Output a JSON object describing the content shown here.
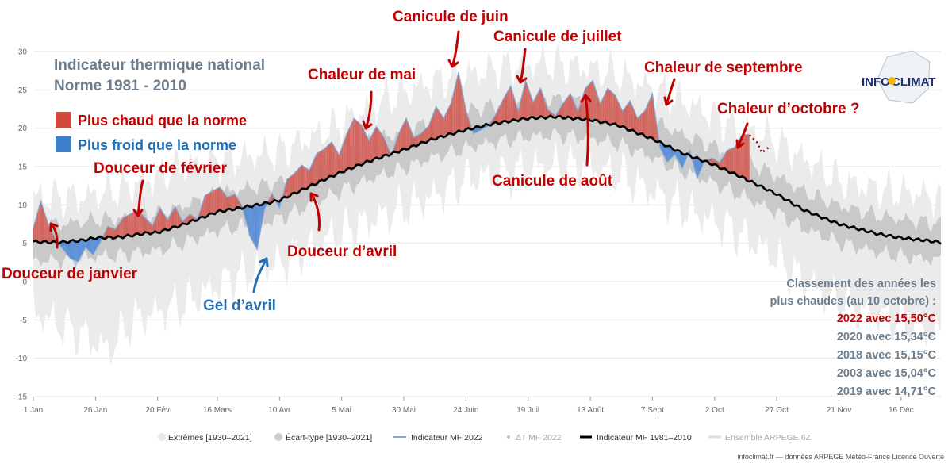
{
  "chart_data": {
    "type": "area",
    "title": "Indicateur thermique national",
    "subtitle": "Norme 1981 - 2010",
    "ylim": [
      -15,
      30
    ],
    "yticks": [
      -15,
      -10,
      -5,
      0,
      5,
      10,
      15,
      20,
      25,
      30
    ],
    "xlim": [
      0,
      365
    ],
    "x_ticks": [
      {
        "label": "1 Jan",
        "day": 0
      },
      {
        "label": "26 Jan",
        "day": 25
      },
      {
        "label": "20 Fév",
        "day": 50
      },
      {
        "label": "16 Mars",
        "day": 74
      },
      {
        "label": "10 Avr",
        "day": 99
      },
      {
        "label": "5 Mai",
        "day": 124
      },
      {
        "label": "30 Mai",
        "day": 149
      },
      {
        "label": "24 Juin",
        "day": 174
      },
      {
        "label": "19 Juil",
        "day": 199
      },
      {
        "label": "13 Août",
        "day": 224
      },
      {
        "label": "7 Sept",
        "day": 249
      },
      {
        "label": "2 Oct",
        "day": 274
      },
      {
        "label": "27 Oct",
        "day": 299
      },
      {
        "label": "21 Nov",
        "day": 324
      },
      {
        "label": "16 Déc",
        "day": 349
      }
    ],
    "x_unit_note": "",
    "normal_1981_2010": {
      "name": "Indicateur MF 1981-2010",
      "color": "#000000",
      "points": [
        [
          0,
          5.2
        ],
        [
          10,
          5.1
        ],
        [
          20,
          5.4
        ],
        [
          25,
          5.7
        ],
        [
          35,
          5.8
        ],
        [
          45,
          6.3
        ],
        [
          50,
          6.4
        ],
        [
          60,
          7.4
        ],
        [
          70,
          8.6
        ],
        [
          74,
          9.1
        ],
        [
          85,
          9.7
        ],
        [
          95,
          10.3
        ],
        [
          99,
          10.6
        ],
        [
          105,
          11.5
        ],
        [
          115,
          13.0
        ],
        [
          124,
          14.3
        ],
        [
          135,
          15.7
        ],
        [
          149,
          17.2
        ],
        [
          160,
          18.5
        ],
        [
          174,
          19.8
        ],
        [
          185,
          20.6
        ],
        [
          199,
          21.3
        ],
        [
          210,
          21.5
        ],
        [
          224,
          21.1
        ],
        [
          235,
          20.4
        ],
        [
          249,
          18.6
        ],
        [
          260,
          16.9
        ],
        [
          274,
          15.2
        ],
        [
          285,
          13.6
        ],
        [
          299,
          11.4
        ],
        [
          310,
          9.3
        ],
        [
          324,
          7.5
        ],
        [
          340,
          6.2
        ],
        [
          349,
          5.7
        ],
        [
          358,
          5.4
        ],
        [
          365,
          5.1
        ]
      ]
    },
    "indicator_2022": {
      "name": "Indicateur MF 2022",
      "color": "#7fa7d9",
      "points": [
        [
          0,
          7
        ],
        [
          3,
          10.5
        ],
        [
          6,
          7.5
        ],
        [
          9,
          5.5
        ],
        [
          12,
          4.2
        ],
        [
          15,
          3
        ],
        [
          18,
          2.6
        ],
        [
          21,
          4.5
        ],
        [
          24,
          3.5
        ],
        [
          27,
          5.2
        ],
        [
          30,
          7.2
        ],
        [
          33,
          6.8
        ],
        [
          36,
          8.3
        ],
        [
          39,
          8.8
        ],
        [
          42,
          9.3
        ],
        [
          45,
          8.3
        ],
        [
          48,
          7.3
        ],
        [
          51,
          9.6
        ],
        [
          54,
          8
        ],
        [
          57,
          9.8
        ],
        [
          60,
          7.8
        ],
        [
          63,
          8.8
        ],
        [
          66,
          8.1
        ],
        [
          69,
          11.2
        ],
        [
          72,
          11.8
        ],
        [
          75,
          12.3
        ],
        [
          78,
          11
        ],
        [
          81,
          11.4
        ],
        [
          84,
          9.8
        ],
        [
          87,
          6
        ],
        [
          90,
          4.2
        ],
        [
          93,
          9.5
        ],
        [
          96,
          11.5
        ],
        [
          99,
          9.6
        ],
        [
          102,
          13.3
        ],
        [
          105,
          14.1
        ],
        [
          108,
          15.2
        ],
        [
          111,
          14.5
        ],
        [
          114,
          16.7
        ],
        [
          117,
          17.3
        ],
        [
          120,
          18.2
        ],
        [
          123,
          16.5
        ],
        [
          126,
          19.2
        ],
        [
          129,
          21.3
        ],
        [
          132,
          20.4
        ],
        [
          135,
          18.4
        ],
        [
          138,
          20.2
        ],
        [
          141,
          18.8
        ],
        [
          144,
          16.4
        ],
        [
          147,
          19.3
        ],
        [
          150,
          21.3
        ],
        [
          153,
          18.8
        ],
        [
          156,
          19.3
        ],
        [
          159,
          20.3
        ],
        [
          162,
          22.8
        ],
        [
          165,
          21.3
        ],
        [
          168,
          23.3
        ],
        [
          171,
          27.3
        ],
        [
          174,
          22.3
        ],
        [
          177,
          19.3
        ],
        [
          180,
          19.8
        ],
        [
          183,
          20.3
        ],
        [
          186,
          21.8
        ],
        [
          189,
          23.8
        ],
        [
          192,
          25.5
        ],
        [
          195,
          22.2
        ],
        [
          198,
          26.2
        ],
        [
          201,
          23.4
        ],
        [
          204,
          25.2
        ],
        [
          207,
          22.4
        ],
        [
          210,
          21.6
        ],
        [
          213,
          23.2
        ],
        [
          216,
          24.5
        ],
        [
          219,
          22.2
        ],
        [
          222,
          25.2
        ],
        [
          225,
          26.2
        ],
        [
          228,
          23.2
        ],
        [
          231,
          25.2
        ],
        [
          234,
          24.3
        ],
        [
          237,
          22.2
        ],
        [
          240,
          23.6
        ],
        [
          243,
          21.3
        ],
        [
          246,
          22.3
        ],
        [
          249,
          24.5
        ],
        [
          252,
          17.5
        ],
        [
          255,
          15.6
        ],
        [
          258,
          16.6
        ],
        [
          261,
          14.8
        ],
        [
          264,
          17.1
        ],
        [
          267,
          13.5
        ],
        [
          270,
          15.8
        ],
        [
          273,
          16.1
        ],
        [
          276,
          15.5
        ],
        [
          279,
          17.1
        ],
        [
          282,
          17.5
        ],
        [
          285,
          19.1
        ],
        [
          288,
          19.2
        ]
      ]
    },
    "ensemble_arpege": {
      "name": "Ensemble ARPEGE 6Z",
      "color": "#8b0000",
      "points": [
        [
          288,
          19.1
        ],
        [
          291,
          18.2
        ],
        [
          293,
          16.8
        ],
        [
          296,
          17.6
        ]
      ]
    },
    "envelope_extremes": {
      "name": "Extrêmes [1930-2021]",
      "color": "#ebebeb",
      "upper": [
        [
          0,
          11
        ],
        [
          20,
          11
        ],
        [
          40,
          12.5
        ],
        [
          60,
          15
        ],
        [
          80,
          16
        ],
        [
          100,
          17
        ],
        [
          120,
          20
        ],
        [
          140,
          23.5
        ],
        [
          160,
          26
        ],
        [
          175,
          27
        ],
        [
          190,
          28
        ],
        [
          205,
          28.5
        ],
        [
          220,
          28
        ],
        [
          235,
          27
        ],
        [
          250,
          25
        ],
        [
          265,
          23
        ],
        [
          280,
          20.5
        ],
        [
          295,
          19
        ],
        [
          310,
          16
        ],
        [
          325,
          13
        ],
        [
          340,
          12
        ],
        [
          355,
          11.5
        ],
        [
          365,
          11
        ]
      ],
      "lower": [
        [
          0,
          -4
        ],
        [
          20,
          -7
        ],
        [
          30,
          -9
        ],
        [
          40,
          -5
        ],
        [
          60,
          -3
        ],
        [
          80,
          0.5
        ],
        [
          100,
          2.5
        ],
        [
          120,
          6
        ],
        [
          140,
          8.5
        ],
        [
          160,
          11
        ],
        [
          175,
          13.5
        ],
        [
          190,
          14
        ],
        [
          205,
          15
        ],
        [
          220,
          15
        ],
        [
          235,
          14
        ],
        [
          250,
          11.5
        ],
        [
          265,
          9
        ],
        [
          280,
          7
        ],
        [
          295,
          4
        ],
        [
          310,
          0
        ],
        [
          325,
          -3
        ],
        [
          340,
          -4.5
        ],
        [
          355,
          -6
        ],
        [
          365,
          -7
        ]
      ]
    },
    "envelope_ecart_type": {
      "name": "Écart-type [1930-2021]",
      "color": "#c9c9c9",
      "half_width": 2.4
    },
    "delta_2022": {
      "name": "ΔT MF 2022",
      "warm_color": "#d2665f",
      "cold_color": "#5b8fd6"
    },
    "legend_position": "bottom"
  },
  "header": {
    "title": "Indicateur thermique national",
    "subtitle": "Norme 1981 - 2010",
    "warm_label": "Plus chaud que la norme",
    "cold_label": "Plus froid que la norme",
    "warm_color": "#d2463c",
    "cold_color": "#3d7fc9"
  },
  "annotations": {
    "janvier": "Douceur de janvier",
    "fevrier": "Douceur de février",
    "gel_avril": "Gel d’avril",
    "douceur_avril": "Douceur d’avril",
    "mai": "Chaleur de mai",
    "juin": "Canicule de juin",
    "juillet": "Canicule de juillet",
    "aout": "Canicule de août",
    "septembre": "Chaleur de septembre",
    "octobre": "Chaleur d’octobre ?"
  },
  "ranking": {
    "title_line1": "Classement des années les",
    "title_line2": "plus chaudes (au 10 octobre) :",
    "entries": [
      "2022 avec 15,50°C",
      "2020 avec 15,34°C",
      "2018 avec 15,15°C",
      "2003 avec 15,04°C",
      "2019 avec 14,71°C"
    ]
  },
  "logo": {
    "text_left": "INFO",
    "text_right": "CLIMAT"
  },
  "legend": {
    "items": [
      "Extrêmes [1930–2021]",
      "Écart-type [1930–2021]",
      "Indicateur MF 2022",
      "ΔT MF 2022",
      "Indicateur MF 1981–2010",
      "Ensemble ARPEGE 6Z"
    ]
  },
  "credit": "infoclimat.fr — données ARPEGE Météo-France Licence Ouverte"
}
